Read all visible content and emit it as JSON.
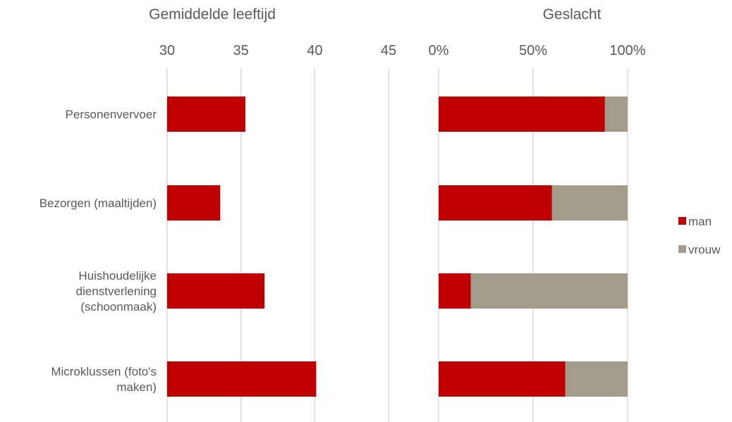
{
  "chart_data": [
    {
      "type": "bar",
      "orientation": "horizontal",
      "title": "Gemiddelde leeftijd",
      "categories": [
        "Personenvervoer",
        "Bezorgen (maaltijden)",
        "Huishoudelijke dienstverlening (schoonmaak)",
        "Microklussen (foto's maken)"
      ],
      "values": [
        35.3,
        33.6,
        36.6,
        40.1
      ],
      "xlim": [
        30,
        45
      ],
      "ticks": [
        "30",
        "35",
        "40",
        "45"
      ],
      "grid": true,
      "colors": [
        "#c00000"
      ]
    },
    {
      "type": "bar",
      "orientation": "horizontal",
      "stacked": true,
      "percent": true,
      "title": "Geslacht",
      "categories": [
        "Personenvervoer",
        "Bezorgen (maaltijden)",
        "Huishoudelijke dienstverlening (schoonmaak)",
        "Microklussen (foto's maken)"
      ],
      "series": [
        {
          "name": "man",
          "values": [
            88,
            60,
            17,
            67
          ],
          "color": "#c00000"
        },
        {
          "name": "vrouw",
          "values": [
            12,
            40,
            83,
            33
          ],
          "color": "#a39c8a"
        }
      ],
      "xlim": [
        0,
        100
      ],
      "ticks": [
        "0%",
        "50%",
        "100%"
      ],
      "grid": true,
      "legend": "right"
    }
  ],
  "category_label_lines": [
    [
      "Personenvervoer"
    ],
    [
      "Bezorgen (maaltijden)"
    ],
    [
      "Huishoudelijke",
      "dienstverlening",
      "(schoonmaak)"
    ],
    [
      "Microklussen (foto's",
      "maken)"
    ]
  ],
  "colors": {
    "man": "#c00000",
    "vrouw": "#a39c8a",
    "grid": "#d9d9d9",
    "text": "#595959"
  }
}
